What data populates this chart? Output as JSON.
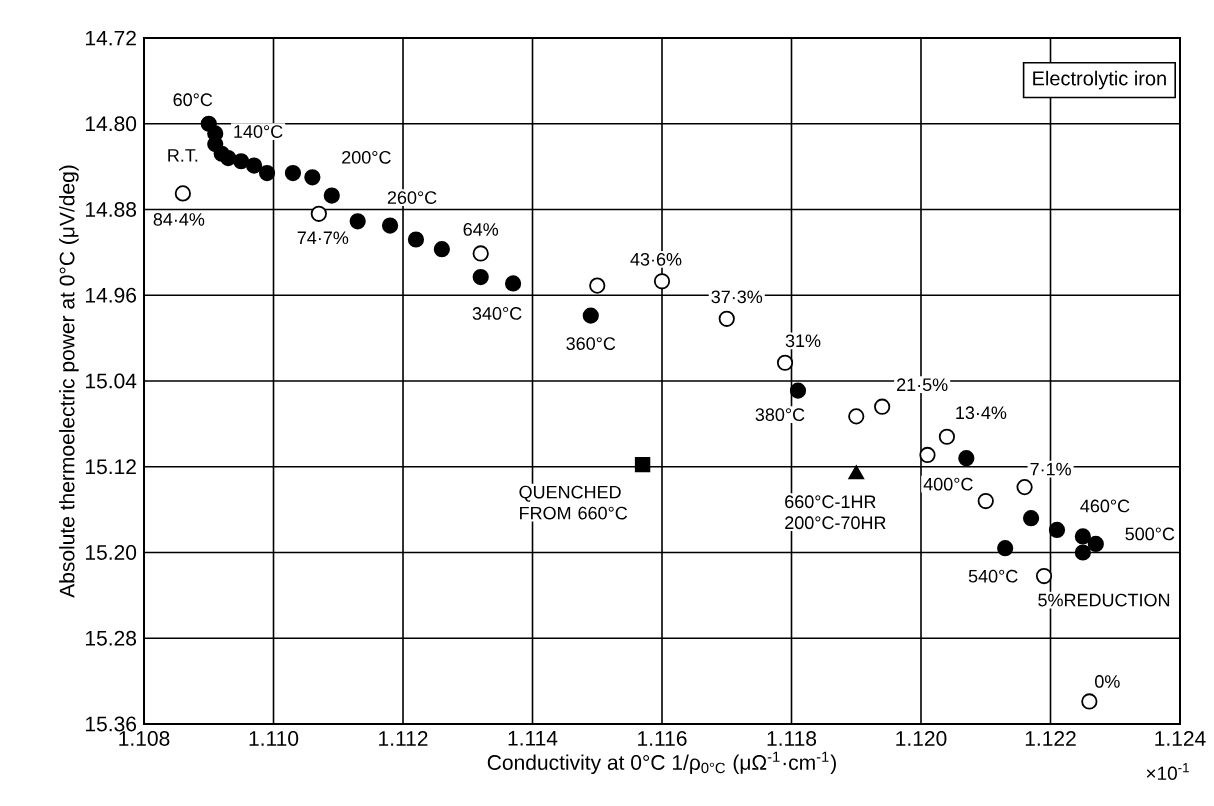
{
  "chart_data": {
    "type": "scatter",
    "xlabel": "Conductivity at 0°C   1/ρ$_{0°C}$ (μΩ$^{-1}$·cm$^{-1}$)",
    "ylabel": "Absolute thermoelectric power at 0°C (μV/deg)",
    "xlim": [
      1.108,
      1.124
    ],
    "ylim": [
      15.36,
      14.72
    ],
    "xticks": [
      1.108,
      {
        "value": 1.11,
        "label": "1.110"
      },
      1.112,
      1.114,
      1.116,
      1.118,
      {
        "value": 1.12,
        "label": "1.120"
      },
      1.122,
      1.124
    ],
    "yticks": [
      14.72,
      {
        "value": 14.8,
        "label": "14.80"
      },
      14.88,
      14.96,
      15.04,
      15.12,
      {
        "value": 15.2,
        "label": "15.20"
      },
      15.28,
      15.36
    ],
    "grid": true,
    "series": [
      {
        "color": "#000000",
        "marker": "circle",
        "x": [
          1.109,
          1.1091,
          1.1091,
          1.1092,
          1.1093,
          1.1095,
          1.1097,
          1.1099,
          1.1103,
          1.1106,
          1.1109,
          1.1113,
          1.1118,
          1.1122,
          1.1126,
          1.1132,
          1.1137,
          1.1149,
          1.1181,
          1.1207,
          1.1213,
          1.1217,
          1.1221,
          1.1225,
          1.1227,
          1.1225
        ],
        "values": [
          14.8,
          14.809,
          14.819,
          14.828,
          14.832,
          14.835,
          14.839,
          14.846,
          14.846,
          14.85,
          14.867,
          14.891,
          14.895,
          14.908,
          14.917,
          14.943,
          14.949,
          14.979,
          15.049,
          15.112,
          15.196,
          15.168,
          15.179,
          15.185,
          15.192,
          15.2
        ]
      },
      {
        "color": "#ffffff",
        "marker": "circle",
        "x": [
          1.1086,
          1.1107,
          1.1132,
          1.115,
          1.116,
          1.117,
          1.1179,
          1.119,
          1.1194,
          1.1201,
          1.1204,
          1.121,
          1.1216,
          1.1219,
          1.1226
        ],
        "values": [
          14.865,
          14.884,
          14.921,
          14.951,
          14.947,
          14.982,
          15.023,
          15.073,
          15.064,
          15.109,
          15.092,
          15.152,
          15.139,
          15.222,
          15.339
        ]
      },
      {
        "color": "#000000",
        "marker": "square",
        "x": [
          1.1157
        ],
        "values": [
          15.118
        ]
      },
      {
        "color": "#000000",
        "marker": "triangle",
        "x": [
          1.119
        ],
        "values": [
          15.127
        ]
      }
    ],
    "annotations": [
      {
        "text": "60°C",
        "x": 1.109,
        "y": 14.8
      },
      {
        "text": "R.T.",
        "x": 1.1091,
        "y": 14.809
      },
      {
        "text": "140°C",
        "x": 1.1097,
        "y": 14.839
      },
      {
        "text": "200°C",
        "x": 1.1106,
        "y": 14.85
      },
      {
        "text": "260°C",
        "x": 1.1118,
        "y": 14.895
      },
      {
        "text": "340°C",
        "x": 1.1137,
        "y": 14.949
      },
      {
        "text": "360°C",
        "x": 1.1149,
        "y": 14.979
      },
      {
        "text": "380°C",
        "x": 1.1181,
        "y": 15.049
      },
      {
        "text": "400°C",
        "x": 1.1207,
        "y": 15.112
      },
      {
        "text": "460°C",
        "x": 1.1221,
        "y": 15.179
      },
      {
        "text": "500°C",
        "x": 1.1227,
        "y": 15.192
      },
      {
        "text": "540°C",
        "x": 1.1213,
        "y": 15.196
      },
      {
        "text": "84·4%",
        "x": 1.1086,
        "y": 14.865
      },
      {
        "text": "74·7%",
        "x": 1.1107,
        "y": 14.884
      },
      {
        "text": "64%",
        "x": 1.1132,
        "y": 14.921
      },
      {
        "text": "43·6%",
        "x": 1.116,
        "y": 14.947
      },
      {
        "text": "37·3%",
        "x": 1.117,
        "y": 14.982
      },
      {
        "text": "31%",
        "x": 1.1179,
        "y": 15.023
      },
      {
        "text": "21·5%",
        "x": 1.1194,
        "y": 15.064
      },
      {
        "text": "13·4%",
        "x": 1.1204,
        "y": 15.092
      },
      {
        "text": "7·1%",
        "x": 1.1216,
        "y": 15.139
      },
      {
        "text": "5%REDUCTION",
        "x": 1.1219,
        "y": 15.222
      },
      {
        "text": "0%",
        "x": 1.1226,
        "y": 15.339
      },
      {
        "text": "QUENCHED FROM 660°C",
        "x": 1.1157,
        "y": 15.118
      },
      {
        "text": "660°C-1HR 200°C-70HR",
        "x": 1.119,
        "y": 15.127
      },
      "Electrolytic iron",
      "×10$^{-1}$"
    ]
  }
}
